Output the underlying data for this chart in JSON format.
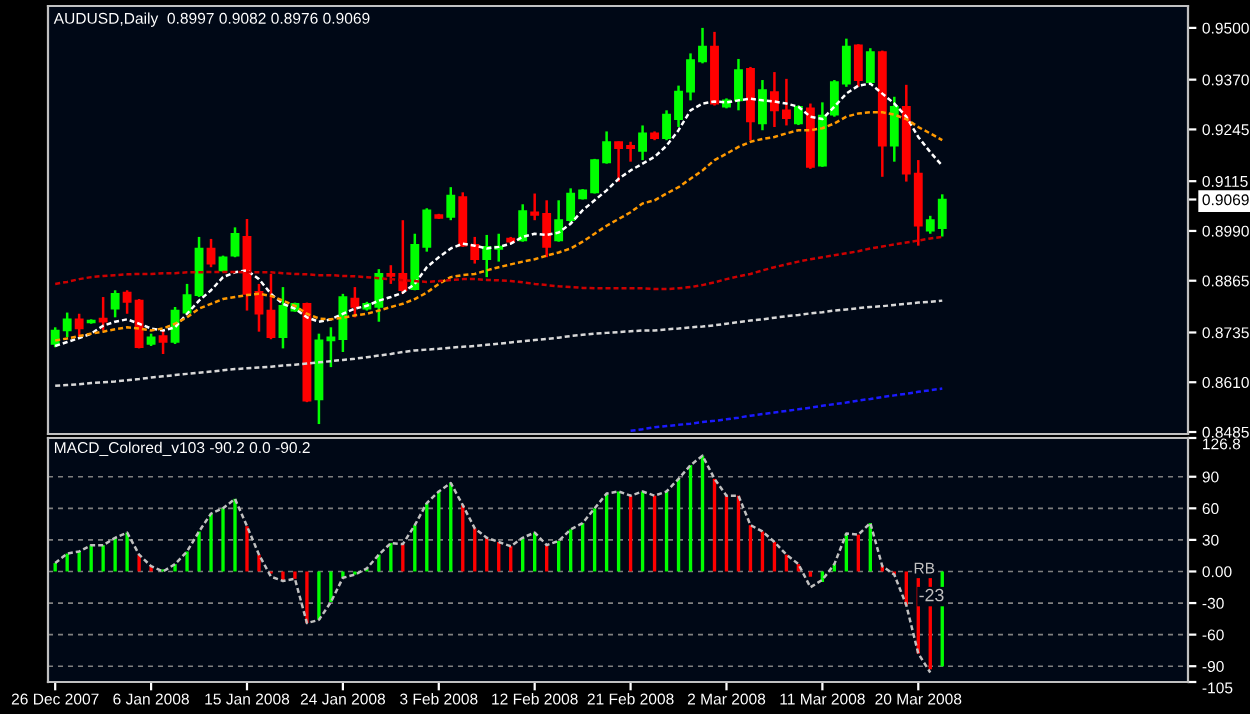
{
  "chart_data": [
    {
      "type": "candlestick",
      "title": "AUDUSD,Daily  0.8997 0.9082 0.8976 0.9069",
      "tick_labels": "y",
      "grid": false,
      "legend": false,
      "categories": [
        null,
        null,
        null,
        null,
        null,
        null,
        null,
        null,
        null,
        null,
        null,
        null,
        null,
        null,
        null,
        null,
        null,
        null,
        null,
        null,
        null,
        null,
        null,
        null,
        null,
        null,
        null,
        null,
        null,
        null,
        null,
        null,
        null,
        null,
        null,
        null,
        null,
        null,
        null,
        null,
        null,
        null,
        null,
        null,
        null,
        null,
        null,
        null,
        null,
        null,
        null,
        null,
        null,
        null,
        null,
        null,
        null,
        null,
        null,
        null,
        null,
        null,
        null,
        null,
        null,
        null,
        null,
        null,
        null,
        null,
        null,
        null,
        null,
        null,
        null
      ],
      "ohlc": [
        [
          0.8706,
          0.8748,
          0.8698,
          0.874
        ],
        [
          0.874,
          0.8785,
          0.8723,
          0.8768
        ],
        [
          0.8768,
          0.8782,
          0.8723,
          0.8745
        ],
        [
          0.876,
          0.8768,
          0.8757,
          0.8765
        ],
        [
          0.877,
          0.8824,
          0.874,
          0.8762
        ],
        [
          0.8795,
          0.8841,
          0.8773,
          0.8832
        ],
        [
          0.8835,
          0.8841,
          0.8782,
          0.8812
        ],
        [
          0.8815,
          0.8819,
          0.8695,
          0.8698
        ],
        [
          0.8706,
          0.8732,
          0.8701,
          0.8723
        ],
        [
          0.8726,
          0.874,
          0.8681,
          0.8711
        ],
        [
          0.8711,
          0.8799,
          0.8706,
          0.879
        ],
        [
          0.8785,
          0.8857,
          0.8782,
          0.8829
        ],
        [
          0.8829,
          0.8975,
          0.8824,
          0.8946
        ],
        [
          0.8946,
          0.897,
          0.8899,
          0.8908
        ],
        [
          0.8891,
          0.8928,
          0.8887,
          0.8924
        ],
        [
          0.8928,
          0.8999,
          0.8924,
          0.8983
        ],
        [
          0.8975,
          0.902,
          0.879,
          0.8832
        ],
        [
          0.8837,
          0.8857,
          0.8737,
          0.8782
        ],
        [
          0.879,
          0.8882,
          0.8718,
          0.8723
        ],
        [
          0.8723,
          0.8849,
          0.8695,
          0.8802
        ],
        [
          0.879,
          0.881,
          0.8787,
          0.8807
        ],
        [
          0.8807,
          0.881,
          0.856,
          0.8564
        ],
        [
          0.8567,
          0.8732,
          0.8505,
          0.8715
        ],
        [
          0.8715,
          0.8748,
          0.8648,
          0.8723
        ],
        [
          0.8718,
          0.8832,
          0.8686,
          0.8824
        ],
        [
          0.882,
          0.8849,
          0.8773,
          0.8799
        ],
        [
          0.8795,
          0.8812,
          0.879,
          0.8807
        ],
        [
          0.8799,
          0.8894,
          0.8762,
          0.8882
        ],
        [
          0.8882,
          0.8904,
          0.8857,
          0.8877
        ],
        [
          0.8882,
          0.9017,
          0.8832,
          0.8841
        ],
        [
          0.8844,
          0.8983,
          0.8841,
          0.8955
        ],
        [
          0.895,
          0.9047,
          0.8938,
          0.9042
        ],
        [
          0.903,
          0.9033,
          0.902,
          0.9023
        ],
        [
          0.9025,
          0.91,
          0.9017,
          0.9079
        ],
        [
          0.9075,
          0.9087,
          0.895,
          0.8953
        ],
        [
          0.8955,
          0.8975,
          0.8908,
          0.8919
        ],
        [
          0.8919,
          0.898,
          0.8874,
          0.895
        ],
        [
          0.8945,
          0.8983,
          0.8913,
          0.8951
        ],
        [
          0.8971,
          0.8975,
          0.896,
          0.8963
        ],
        [
          0.8966,
          0.9057,
          0.8963,
          0.904
        ],
        [
          0.9037,
          0.9084,
          0.9017,
          0.903
        ],
        [
          0.9033,
          0.9067,
          0.8924,
          0.895
        ],
        [
          0.8966,
          0.9067,
          0.8963,
          0.9017
        ],
        [
          0.9017,
          0.9097,
          0.9008,
          0.9084
        ],
        [
          0.9072,
          0.9095,
          0.9069,
          0.9092
        ],
        [
          0.9087,
          0.9171,
          0.9084,
          0.9168
        ],
        [
          0.9162,
          0.924,
          0.9159,
          0.9213
        ],
        [
          0.9213,
          0.9215,
          0.9114,
          0.9198
        ],
        [
          0.9204,
          0.9214,
          0.9164,
          0.9198
        ],
        [
          0.9191,
          0.9255,
          0.9168,
          0.9235
        ],
        [
          0.9235,
          0.924,
          0.9218,
          0.9223
        ],
        [
          0.9223,
          0.9293,
          0.9218,
          0.9282
        ],
        [
          0.9271,
          0.9355,
          0.9251,
          0.934
        ],
        [
          0.934,
          0.9436,
          0.9318,
          0.9419
        ],
        [
          0.9416,
          0.95,
          0.9411,
          0.9453
        ],
        [
          0.9453,
          0.949,
          0.9305,
          0.931
        ],
        [
          0.9302,
          0.9323,
          0.9298,
          0.9318
        ],
        [
          0.9318,
          0.9422,
          0.9293,
          0.9394
        ],
        [
          0.9397,
          0.9402,
          0.9218,
          0.9265
        ],
        [
          0.926,
          0.9369,
          0.9243,
          0.9344
        ],
        [
          0.9339,
          0.9389,
          0.9251,
          0.9293
        ],
        [
          0.9293,
          0.9372,
          0.9255,
          0.9273
        ],
        [
          0.926,
          0.9305,
          0.9256,
          0.9302
        ],
        [
          0.9298,
          0.931,
          0.9146,
          0.9151
        ],
        [
          0.9154,
          0.9313,
          0.9151,
          0.928
        ],
        [
          0.9282,
          0.9369,
          0.9277,
          0.9364
        ],
        [
          0.936,
          0.9473,
          0.9352,
          0.9453
        ],
        [
          0.9456,
          0.9459,
          0.9352,
          0.9369
        ],
        [
          0.9364,
          0.9449,
          0.936,
          0.9439
        ],
        [
          0.9439,
          0.9443,
          0.9126,
          0.9204
        ],
        [
          0.9204,
          0.9327,
          0.9164,
          0.9302
        ],
        [
          0.9302,
          0.9357,
          0.9114,
          0.9134
        ],
        [
          0.9134,
          0.9168,
          0.8953,
          0.9003
        ],
        [
          0.8991,
          0.9028,
          0.8983,
          0.9017
        ],
        [
          0.8997,
          0.9082,
          0.8976,
          0.9069
        ]
      ],
      "colors": [
        "#00ff00",
        "#00ff00",
        "#ff0000",
        "#00ff00",
        "#ff0000",
        "#00ff00",
        "#ff0000",
        "#ff0000",
        "#00ff00",
        "#ff0000",
        "#00ff00",
        "#00ff00",
        "#00ff00",
        "#ff0000",
        "#00ff00",
        "#00ff00",
        "#ff0000",
        "#ff0000",
        "#ff0000",
        "#00ff00",
        "#00ff00",
        "#ff0000",
        "#00ff00",
        "#00ff00",
        "#00ff00",
        "#ff0000",
        "#00ff00",
        "#00ff00",
        "#ff0000",
        "#ff0000",
        "#00ff00",
        "#00ff00",
        "#ff0000",
        "#00ff00",
        "#ff0000",
        "#ff0000",
        "#00ff00",
        "#00ff00",
        "#ff0000",
        "#00ff00",
        "#ff0000",
        "#ff0000",
        "#00ff00",
        "#00ff00",
        "#00ff00",
        "#00ff00",
        "#00ff00",
        "#ff0000",
        "#ff0000",
        "#00ff00",
        "#ff0000",
        "#00ff00",
        "#00ff00",
        "#00ff00",
        "#00ff00",
        "#ff0000",
        "#00ff00",
        "#00ff00",
        "#ff0000",
        "#00ff00",
        "#ff0000",
        "#ff0000",
        "#00ff00",
        "#ff0000",
        "#00ff00",
        "#00ff00",
        "#00ff00",
        "#ff0000",
        "#00ff00",
        "#ff0000",
        "#00ff00",
        "#ff0000",
        "#ff0000",
        "#00ff00",
        "#00ff00"
      ],
      "series": [
        {
          "type": "line",
          "color": "#ffffff",
          "line_style": "dashed",
          "values": [
            0.8701,
            0.8711,
            0.8721,
            0.8732,
            0.8752,
            0.8762,
            0.8768,
            0.8757,
            0.8745,
            0.874,
            0.8748,
            0.8782,
            0.8815,
            0.8841,
            0.8874,
            0.8886,
            0.8891,
            0.8869,
            0.8832,
            0.8807,
            0.8795,
            0.8773,
            0.8762,
            0.8768,
            0.8782,
            0.8795,
            0.8802,
            0.8815,
            0.8824,
            0.8835,
            0.8857,
            0.8899,
            0.8924,
            0.8946,
            0.8958,
            0.8953,
            0.8946,
            0.895,
            0.8958,
            0.8975,
            0.8983,
            0.898,
            0.8986,
            0.9008,
            0.9042,
            0.9067,
            0.9092,
            0.9121,
            0.9142,
            0.9159,
            0.9176,
            0.9204,
            0.9243,
            0.9293,
            0.931,
            0.9315,
            0.9313,
            0.9318,
            0.9322,
            0.9318,
            0.9315,
            0.931,
            0.9302,
            0.9277,
            0.9271,
            0.9302,
            0.9335,
            0.9355,
            0.936,
            0.9335,
            0.931,
            0.9277,
            0.9226,
            0.9188,
            0.9154
          ]
        },
        {
          "type": "line",
          "color": "#ff9900",
          "line_style": "dashed",
          "values": [
            0.8715,
            0.872,
            0.8726,
            0.8732,
            0.8737,
            0.8743,
            0.8748,
            0.8745,
            0.874,
            0.8745,
            0.8757,
            0.8773,
            0.8795,
            0.8807,
            0.8819,
            0.8824,
            0.8829,
            0.8832,
            0.8827,
            0.8815,
            0.8802,
            0.8782,
            0.877,
            0.8768,
            0.8772,
            0.8778,
            0.8782,
            0.879,
            0.8799,
            0.8807,
            0.8819,
            0.8835,
            0.8857,
            0.8874,
            0.8879,
            0.8882,
            0.8891,
            0.8899,
            0.8906,
            0.8913,
            0.8919,
            0.8928,
            0.8936,
            0.8946,
            0.8963,
            0.8983,
            0.9003,
            0.902,
            0.9037,
            0.9059,
            0.9067,
            0.9084,
            0.91,
            0.9121,
            0.9142,
            0.9168,
            0.9184,
            0.9201,
            0.9214,
            0.9221,
            0.9226,
            0.9235,
            0.9243,
            0.9243,
            0.9248,
            0.926,
            0.9277,
            0.9285,
            0.9288,
            0.9288,
            0.9282,
            0.9271,
            0.9251,
            0.9235,
            0.9218
          ]
        },
        {
          "type": "line",
          "color": "#cc0000",
          "line_style": "dashed",
          "values": [
            0.8857,
            0.8862,
            0.8869,
            0.8874,
            0.8877,
            0.8879,
            0.8881,
            0.8882,
            0.8882,
            0.8884,
            0.8884,
            0.8886,
            0.8886,
            0.8887,
            0.8887,
            0.8887,
            0.8886,
            0.8886,
            0.8886,
            0.8884,
            0.8882,
            0.8881,
            0.8879,
            0.8879,
            0.8877,
            0.8876,
            0.8874,
            0.8871,
            0.8869,
            0.8866,
            0.8864,
            0.8862,
            0.8864,
            0.8867,
            0.8869,
            0.8869,
            0.8867,
            0.8866,
            0.8864,
            0.8861,
            0.8857,
            0.8854,
            0.8851,
            0.8849,
            0.8847,
            0.8846,
            0.8846,
            0.8846,
            0.8846,
            0.8846,
            0.8844,
            0.8844,
            0.8846,
            0.8849,
            0.8854,
            0.8861,
            0.8869,
            0.8876,
            0.8882,
            0.8891,
            0.8899,
            0.8906,
            0.8913,
            0.8919,
            0.8924,
            0.8929,
            0.8934,
            0.8939,
            0.8946,
            0.8951,
            0.8956,
            0.8961,
            0.8966,
            0.8971,
            0.8975
          ]
        },
        {
          "type": "line",
          "color": "#d8d8d8",
          "line_style": "dashed",
          "values": [
            0.8601,
            0.8603,
            0.8605,
            0.8608,
            0.861,
            0.8612,
            0.8615,
            0.8618,
            0.8622,
            0.8625,
            0.8628,
            0.8631,
            0.8634,
            0.8637,
            0.864,
            0.8643,
            0.8645,
            0.8647,
            0.8649,
            0.8652,
            0.8654,
            0.8657,
            0.866,
            0.8663,
            0.8666,
            0.8669,
            0.8673,
            0.8677,
            0.8681,
            0.8686,
            0.869,
            0.8692,
            0.8694,
            0.8697,
            0.8699,
            0.8701,
            0.8704,
            0.8707,
            0.871,
            0.8713,
            0.8716,
            0.8719,
            0.8722,
            0.8726,
            0.8729,
            0.8732,
            0.8734,
            0.8736,
            0.8738,
            0.874,
            0.874,
            0.8743,
            0.8745,
            0.8748,
            0.875,
            0.8753,
            0.8757,
            0.8761,
            0.8765,
            0.8768,
            0.8772,
            0.8776,
            0.8779,
            0.8783,
            0.8786,
            0.879,
            0.8793,
            0.8796,
            0.8799,
            0.8801,
            0.8804,
            0.8807,
            0.881,
            0.8812,
            0.8815
          ]
        },
        {
          "type": "line",
          "color": "#1a1aff",
          "line_style": "dashed",
          "values": [
            null,
            null,
            null,
            null,
            null,
            null,
            null,
            null,
            null,
            null,
            null,
            null,
            null,
            null,
            null,
            null,
            null,
            null,
            null,
            null,
            null,
            null,
            null,
            null,
            null,
            null,
            null,
            null,
            null,
            null,
            null,
            null,
            null,
            null,
            null,
            null,
            null,
            null,
            null,
            null,
            null,
            null,
            null,
            null,
            null,
            null,
            null,
            null,
            0.8488,
            0.8492,
            0.8497,
            0.85,
            0.8503,
            0.8506,
            0.851,
            0.8513,
            0.8517,
            0.8521,
            0.8526,
            0.853,
            0.8534,
            0.8538,
            0.8542,
            0.8546,
            0.8551,
            0.8555,
            0.8559,
            0.8564,
            0.8568,
            0.8573,
            0.8577,
            0.8581,
            0.8586,
            0.859,
            0.8594
          ]
        }
      ],
      "ylim": [
        0.848,
        0.9555
      ],
      "yticks": [
        {
          "value": 0.95,
          "label": "0.9500"
        },
        {
          "value": 0.937,
          "label": "0.9370"
        },
        {
          "value": 0.9245,
          "label": "0.9245"
        },
        {
          "value": 0.9115,
          "label": "0.9115"
        },
        {
          "value": 0.9069,
          "label": "0.9069"
        },
        {
          "value": 0.899,
          "label": "0.8990"
        },
        {
          "value": 0.8865,
          "label": "0.8865"
        },
        {
          "value": 0.8735,
          "label": "0.8735"
        },
        {
          "value": 0.861,
          "label": "0.8610"
        },
        {
          "value": 0.8485,
          "label": "0.8485"
        }
      ]
    },
    {
      "type": "bar",
      "title": "MACD_Colored_v103 -90.2 0.0 -90.2",
      "grid": "y",
      "legend": false,
      "categories": [
        "26 Dec 2007",
        null,
        null,
        null,
        null,
        null,
        null,
        null,
        "6 Jan 2008",
        null,
        null,
        null,
        null,
        null,
        null,
        null,
        "15 Jan 2008",
        null,
        null,
        null,
        null,
        null,
        null,
        null,
        "24 Jan 2008",
        null,
        null,
        null,
        null,
        null,
        null,
        null,
        "3 Feb 2008",
        null,
        null,
        null,
        null,
        null,
        null,
        null,
        "12 Feb 2008",
        null,
        null,
        null,
        null,
        null,
        null,
        null,
        "21 Feb 2008",
        null,
        null,
        null,
        null,
        null,
        null,
        null,
        "2 Mar 2008",
        null,
        null,
        null,
        null,
        null,
        null,
        null,
        "11 Mar 2008",
        null,
        null,
        null,
        null,
        null,
        null,
        null,
        "20 Mar 2008",
        null,
        null
      ],
      "values": [
        8,
        17,
        19,
        25,
        25,
        32,
        37,
        16,
        5,
        2,
        7,
        19,
        38,
        55,
        60,
        69,
        43,
        16,
        -2,
        -9,
        -7,
        -49,
        -46,
        -29,
        -6,
        -3,
        3,
        16,
        27,
        26,
        44,
        65,
        76,
        84,
        63,
        41,
        32,
        28,
        24,
        32,
        37,
        25,
        29,
        40,
        46,
        60,
        74,
        76,
        72,
        76,
        72,
        76,
        88,
        101,
        110,
        88,
        72,
        72,
        44,
        38,
        28,
        16,
        7,
        -5,
        -10,
        7,
        36,
        35,
        46,
        5,
        -3,
        -32,
        -78,
        -93,
        -90.2
      ],
      "colors": [
        "#00ff00",
        "#00ff00",
        "#00ff00",
        "#00ff00",
        "#00ff00",
        "#00ff00",
        "#00ff00",
        "#ff0000",
        "#ff0000",
        "#00ff00",
        "#00ff00",
        "#00ff00",
        "#00ff00",
        "#00ff00",
        "#00ff00",
        "#00ff00",
        "#ff0000",
        "#ff0000",
        "#ff0000",
        "#ff0000",
        "#ff0000",
        "#ff0000",
        "#00ff00",
        "#00ff00",
        "#00ff00",
        "#00ff00",
        "#00ff00",
        "#00ff00",
        "#00ff00",
        "#ff0000",
        "#00ff00",
        "#00ff00",
        "#00ff00",
        "#00ff00",
        "#ff0000",
        "#ff0000",
        "#ff0000",
        "#ff0000",
        "#ff0000",
        "#00ff00",
        "#00ff00",
        "#ff0000",
        "#00ff00",
        "#00ff00",
        "#00ff00",
        "#00ff00",
        "#00ff00",
        "#00ff00",
        "#ff0000",
        "#00ff00",
        "#ff0000",
        "#00ff00",
        "#00ff00",
        "#00ff00",
        "#00ff00",
        "#ff0000",
        "#ff0000",
        "#ff0000",
        "#ff0000",
        "#ff0000",
        "#ff0000",
        "#ff0000",
        "#ff0000",
        "#ff0000",
        "#00ff00",
        "#00ff00",
        "#00ff00",
        "#ff0000",
        "#00ff00",
        "#ff0000",
        "#ff0000",
        "#ff0000",
        "#ff0000",
        "#ff0000",
        "#00ff00"
      ],
      "series": [
        {
          "type": "line",
          "color": "#c0c0c0",
          "line_style": "dashed",
          "values": [
            8,
            17,
            19,
            25,
            25,
            32,
            37,
            16,
            5,
            0,
            7,
            19,
            38,
            55,
            60,
            69,
            43,
            16,
            -5,
            -9,
            -7,
            -49,
            -46,
            -29,
            -6,
            -3,
            3,
            16,
            27,
            26,
            44,
            65,
            76,
            84,
            63,
            41,
            32,
            28,
            24,
            32,
            37,
            25,
            29,
            40,
            46,
            60,
            74,
            76,
            72,
            76,
            72,
            76,
            88,
            101,
            110,
            88,
            72,
            72,
            44,
            38,
            28,
            16,
            7,
            -15,
            -8,
            7,
            36,
            35,
            46,
            5,
            -3,
            -32,
            -78,
            -96,
            null
          ]
        }
      ],
      "ylim": [
        -105,
        126.8
      ],
      "yticks": [
        126.8,
        90,
        60,
        30,
        {
          "value": 0,
          "label": "0.00"
        },
        -30,
        -60,
        -90,
        -105
      ],
      "annotations": [
        {
          "text": "RB",
          "y": -5
        },
        "-23"
      ]
    }
  ]
}
